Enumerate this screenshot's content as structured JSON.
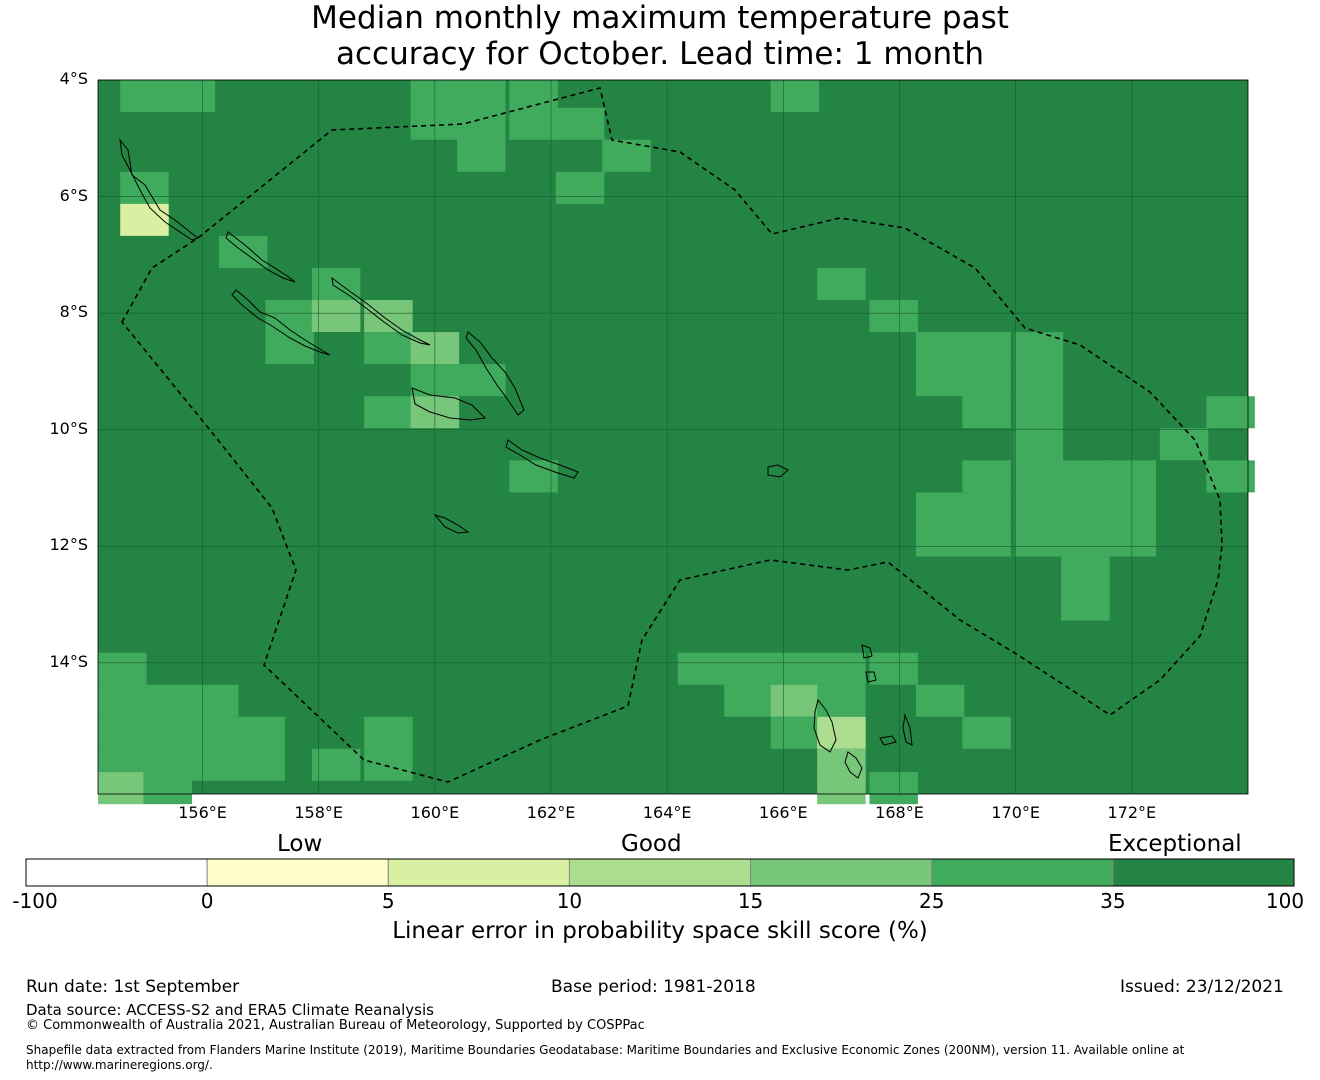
{
  "title_line1": "Median monthly maximum temperature past",
  "title_line2": "accuracy for October. Lead time: 1 month",
  "map": {
    "lon_min": 154.2,
    "lon_max": 174.0,
    "lat_min": -16.25,
    "lat_max": -4.0,
    "lat_labels": [
      "4°S",
      "6°S",
      "8°S",
      "10°S",
      "12°S",
      "14°S"
    ],
    "lon_labels": [
      "156°E",
      "158°E",
      "160°E",
      "162°E",
      "164°E",
      "166°E",
      "168°E",
      "170°E",
      "172°E"
    ],
    "background_category": 6,
    "cells_note": "",
    "cells": [
      {
        "lon": 155.0,
        "lat": -4.2,
        "cat": 5
      },
      {
        "lon": 155.8,
        "lat": -4.2,
        "cat": 5
      },
      {
        "lon": 160.0,
        "lat": -4.2,
        "cat": 5
      },
      {
        "lon": 160.8,
        "lat": -4.2,
        "cat": 5
      },
      {
        "lon": 161.7,
        "lat": -4.2,
        "cat": 5
      },
      {
        "lon": 166.2,
        "lat": -4.2,
        "cat": 5
      },
      {
        "lon": 160.0,
        "lat": -4.75,
        "cat": 5
      },
      {
        "lon": 160.8,
        "lat": -4.75,
        "cat": 5
      },
      {
        "lon": 161.7,
        "lat": -4.75,
        "cat": 5
      },
      {
        "lon": 162.5,
        "lat": -4.75,
        "cat": 5
      },
      {
        "lon": 160.8,
        "lat": -5.3,
        "cat": 5
      },
      {
        "lon": 163.3,
        "lat": -5.3,
        "cat": 5
      },
      {
        "lon": 162.5,
        "lat": -5.85,
        "cat": 5
      },
      {
        "lon": 155.0,
        "lat": -5.85,
        "cat": 5
      },
      {
        "lon": 155.0,
        "lat": -6.4,
        "cat": 2
      },
      {
        "lon": 156.7,
        "lat": -6.95,
        "cat": 5
      },
      {
        "lon": 158.3,
        "lat": -7.5,
        "cat": 5
      },
      {
        "lon": 167.0,
        "lat": -7.5,
        "cat": 5
      },
      {
        "lon": 157.5,
        "lat": -8.05,
        "cat": 5
      },
      {
        "lon": 158.3,
        "lat": -8.05,
        "cat": 4
      },
      {
        "lon": 159.2,
        "lat": -8.05,
        "cat": 4
      },
      {
        "lon": 167.9,
        "lat": -8.05,
        "cat": 5
      },
      {
        "lon": 157.5,
        "lat": -8.6,
        "cat": 5
      },
      {
        "lon": 159.2,
        "lat": -8.6,
        "cat": 5
      },
      {
        "lon": 160.0,
        "lat": -8.6,
        "cat": 4
      },
      {
        "lon": 168.7,
        "lat": -8.6,
        "cat": 5
      },
      {
        "lon": 169.5,
        "lat": -8.6,
        "cat": 5
      },
      {
        "lon": 170.4,
        "lat": -8.6,
        "cat": 5
      },
      {
        "lon": 160.0,
        "lat": -9.15,
        "cat": 5
      },
      {
        "lon": 160.8,
        "lat": -9.15,
        "cat": 5
      },
      {
        "lon": 168.7,
        "lat": -9.15,
        "cat": 5
      },
      {
        "lon": 169.5,
        "lat": -9.15,
        "cat": 5
      },
      {
        "lon": 170.4,
        "lat": -9.15,
        "cat": 5
      },
      {
        "lon": 159.2,
        "lat": -9.7,
        "cat": 5
      },
      {
        "lon": 160.0,
        "lat": -9.7,
        "cat": 4
      },
      {
        "lon": 169.5,
        "lat": -9.7,
        "cat": 5
      },
      {
        "lon": 170.4,
        "lat": -9.7,
        "cat": 5
      },
      {
        "lon": 173.7,
        "lat": -9.7,
        "cat": 5
      },
      {
        "lon": 170.4,
        "lat": -10.25,
        "cat": 5
      },
      {
        "lon": 172.9,
        "lat": -10.25,
        "cat": 5
      },
      {
        "lon": 161.7,
        "lat": -10.8,
        "cat": 5
      },
      {
        "lon": 169.5,
        "lat": -10.8,
        "cat": 5
      },
      {
        "lon": 170.4,
        "lat": -10.8,
        "cat": 5
      },
      {
        "lon": 171.2,
        "lat": -10.8,
        "cat": 5
      },
      {
        "lon": 172.0,
        "lat": -10.8,
        "cat": 5
      },
      {
        "lon": 173.7,
        "lat": -10.8,
        "cat": 5
      },
      {
        "lon": 168.7,
        "lat": -11.35,
        "cat": 5
      },
      {
        "lon": 169.5,
        "lat": -11.35,
        "cat": 5
      },
      {
        "lon": 170.4,
        "lat": -11.35,
        "cat": 5
      },
      {
        "lon": 171.2,
        "lat": -11.35,
        "cat": 5
      },
      {
        "lon": 172.0,
        "lat": -11.35,
        "cat": 5
      },
      {
        "lon": 168.7,
        "lat": -11.9,
        "cat": 5
      },
      {
        "lon": 169.5,
        "lat": -11.9,
        "cat": 5
      },
      {
        "lon": 170.4,
        "lat": -11.9,
        "cat": 5
      },
      {
        "lon": 171.2,
        "lat": -11.9,
        "cat": 5
      },
      {
        "lon": 172.0,
        "lat": -11.9,
        "cat": 5
      },
      {
        "lon": 171.2,
        "lat": -12.45,
        "cat": 5
      },
      {
        "lon": 171.2,
        "lat": -13.0,
        "cat": 5
      },
      {
        "lon": 154.6,
        "lat": -14.1,
        "cat": 5
      },
      {
        "lon": 164.6,
        "lat": -14.1,
        "cat": 5
      },
      {
        "lon": 165.4,
        "lat": -14.1,
        "cat": 5
      },
      {
        "lon": 166.2,
        "lat": -14.1,
        "cat": 5
      },
      {
        "lon": 167.0,
        "lat": -14.1,
        "cat": 5
      },
      {
        "lon": 167.9,
        "lat": -14.1,
        "cat": 5
      },
      {
        "lon": 154.6,
        "lat": -14.65,
        "cat": 5
      },
      {
        "lon": 155.4,
        "lat": -14.65,
        "cat": 5
      },
      {
        "lon": 156.2,
        "lat": -14.65,
        "cat": 5
      },
      {
        "lon": 165.4,
        "lat": -14.65,
        "cat": 5
      },
      {
        "lon": 166.2,
        "lat": -14.65,
        "cat": 4
      },
      {
        "lon": 167.0,
        "lat": -14.65,
        "cat": 5
      },
      {
        "lon": 168.7,
        "lat": -14.65,
        "cat": 5
      },
      {
        "lon": 154.6,
        "lat": -15.2,
        "cat": 5
      },
      {
        "lon": 155.4,
        "lat": -15.2,
        "cat": 5
      },
      {
        "lon": 156.2,
        "lat": -15.2,
        "cat": 5
      },
      {
        "lon": 157.0,
        "lat": -15.2,
        "cat": 5
      },
      {
        "lon": 159.2,
        "lat": -15.2,
        "cat": 5
      },
      {
        "lon": 166.2,
        "lat": -15.2,
        "cat": 5
      },
      {
        "lon": 167.0,
        "lat": -15.2,
        "cat": 3
      },
      {
        "lon": 169.5,
        "lat": -15.2,
        "cat": 5
      },
      {
        "lon": 154.6,
        "lat": -15.75,
        "cat": 5
      },
      {
        "lon": 155.4,
        "lat": -15.75,
        "cat": 5
      },
      {
        "lon": 156.2,
        "lat": -15.75,
        "cat": 5
      },
      {
        "lon": 157.0,
        "lat": -15.75,
        "cat": 5
      },
      {
        "lon": 158.3,
        "lat": -15.75,
        "cat": 5
      },
      {
        "lon": 159.2,
        "lat": -15.75,
        "cat": 5
      },
      {
        "lon": 167.0,
        "lat": -15.75,
        "cat": 4
      },
      {
        "lon": 154.6,
        "lat": -16.15,
        "cat": 4
      },
      {
        "lon": 155.4,
        "lat": -16.15,
        "cat": 5
      },
      {
        "lon": 167.0,
        "lat": -16.15,
        "cat": 4
      },
      {
        "lon": 167.9,
        "lat": -16.15,
        "cat": 5
      }
    ]
  },
  "legend": {
    "categories": [
      "Low",
      "Good",
      "Exceptional"
    ],
    "ticks": [
      "-100",
      "0",
      "5",
      "10",
      "15",
      "25",
      "35",
      "100"
    ],
    "colors": [
      "#ffffff",
      "#ffffcc",
      "#d9f0a3",
      "#addd8e",
      "#78c679",
      "#41ab5d",
      "#238443"
    ],
    "title": "Linear error in probability space skill score (%)"
  },
  "footer": {
    "run_date": "Run date: 1st September",
    "base_period": "Base period: 1981-2018",
    "issued": "Issued: 23/12/2021",
    "data_source": "Data source: ACCESS-S2 and ERA5 Climate Reanalysis",
    "copyright": "© Commonwealth of Australia 2021, Australian Bureau of Meteorology, Supported by COSPPac",
    "shapefile_line1": "Shapefile data extracted from Flanders Marine Institute (2019), Maritime Boundaries Geodatabase: Maritime Boundaries and Exclusive Economic Zones (200NM), version 11. Available online at",
    "shapefile_line2": "http://www.marineregions.org/."
  }
}
